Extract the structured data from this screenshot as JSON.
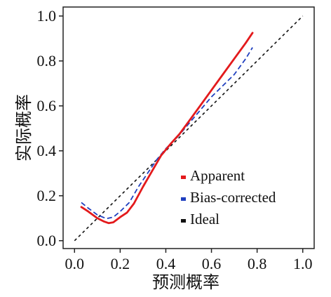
{
  "chart_data": {
    "type": "line",
    "title": "",
    "xlabel": "预测概率",
    "ylabel": "实际概率",
    "xlim": [
      -0.05,
      1.05
    ],
    "ylim": [
      -0.035,
      1.04
    ],
    "x_ticks": [
      "0.0",
      "0.2",
      "0.4",
      "0.6",
      "0.8",
      "1.0"
    ],
    "y_ticks": [
      "0.0",
      "0.2",
      "0.4",
      "0.6",
      "0.8",
      "1.0"
    ],
    "grid": false,
    "legend_position": "bottom-right",
    "series": [
      {
        "name": "Apparent",
        "color": "#e31a1c",
        "style": "solid",
        "points": [
          [
            0.03,
            0.15
          ],
          [
            0.06,
            0.13
          ],
          [
            0.1,
            0.1
          ],
          [
            0.13,
            0.085
          ],
          [
            0.15,
            0.078
          ],
          [
            0.17,
            0.082
          ],
          [
            0.2,
            0.105
          ],
          [
            0.23,
            0.125
          ],
          [
            0.26,
            0.165
          ],
          [
            0.3,
            0.24
          ],
          [
            0.34,
            0.31
          ],
          [
            0.38,
            0.38
          ],
          [
            0.42,
            0.43
          ],
          [
            0.46,
            0.475
          ],
          [
            0.5,
            0.53
          ],
          [
            0.55,
            0.6
          ],
          [
            0.6,
            0.67
          ],
          [
            0.65,
            0.74
          ],
          [
            0.7,
            0.81
          ],
          [
            0.75,
            0.88
          ],
          [
            0.78,
            0.925
          ]
        ]
      },
      {
        "name": "Bias-corrected",
        "color": "#1f3fbf",
        "style": "dashed",
        "points": [
          [
            0.03,
            0.17
          ],
          [
            0.06,
            0.145
          ],
          [
            0.1,
            0.115
          ],
          [
            0.14,
            0.098
          ],
          [
            0.17,
            0.105
          ],
          [
            0.2,
            0.13
          ],
          [
            0.24,
            0.17
          ],
          [
            0.28,
            0.24
          ],
          [
            0.32,
            0.3
          ],
          [
            0.36,
            0.36
          ],
          [
            0.4,
            0.41
          ],
          [
            0.45,
            0.46
          ],
          [
            0.5,
            0.52
          ],
          [
            0.55,
            0.58
          ],
          [
            0.6,
            0.64
          ],
          [
            0.65,
            0.69
          ],
          [
            0.7,
            0.74
          ],
          [
            0.75,
            0.81
          ],
          [
            0.78,
            0.86
          ]
        ]
      },
      {
        "name": "Ideal",
        "color": "#111111",
        "style": "dotted",
        "points": [
          [
            0,
            0
          ],
          [
            1,
            1
          ]
        ]
      }
    ]
  }
}
